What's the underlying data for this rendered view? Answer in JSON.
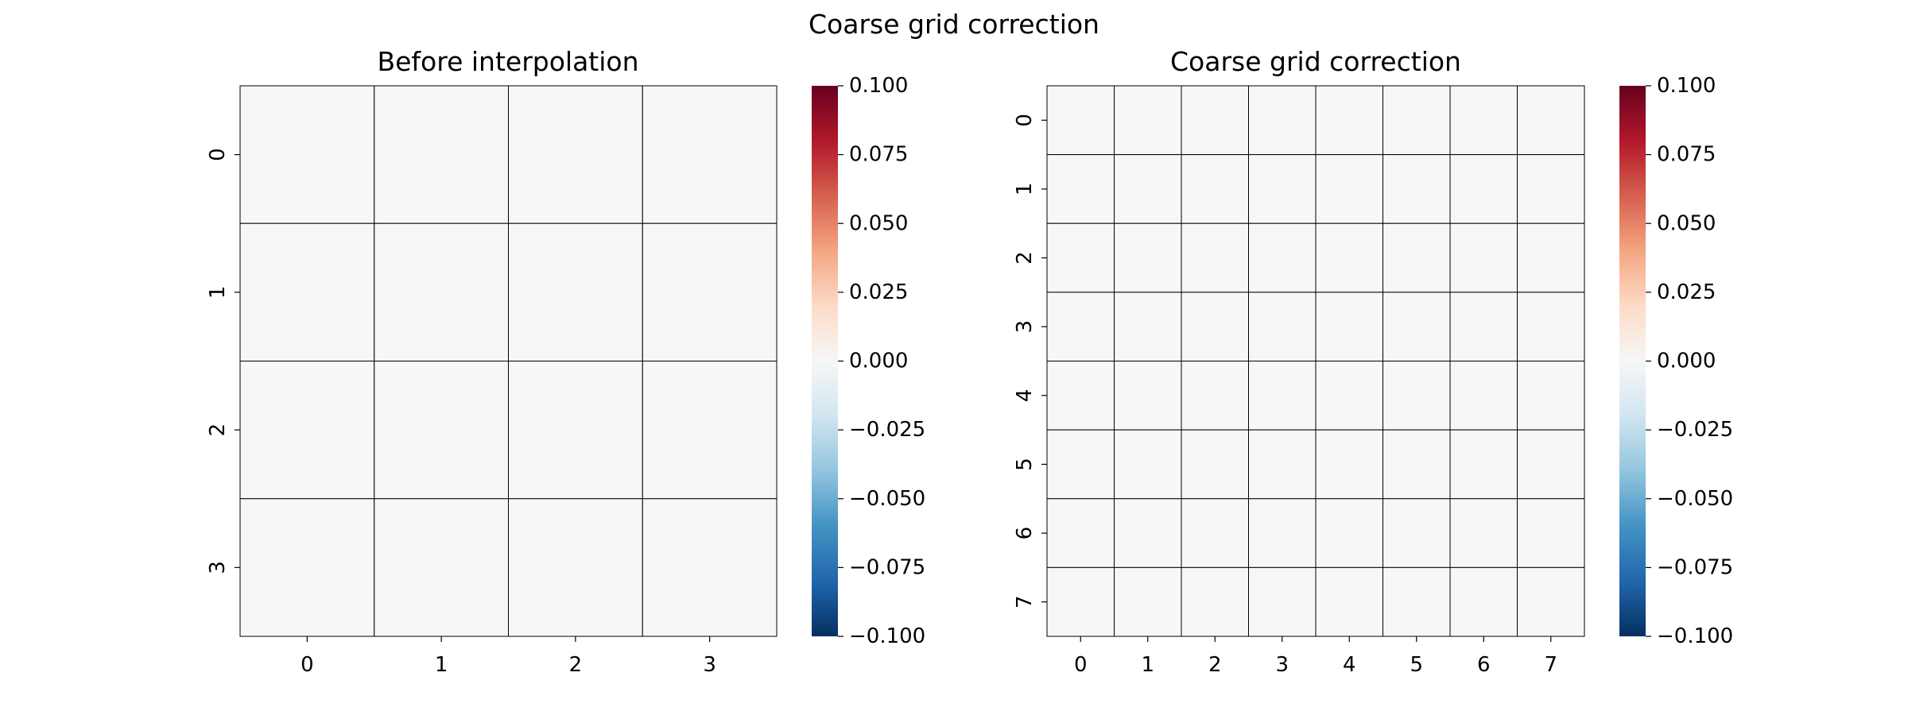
{
  "figure": {
    "suptitle": "Coarse grid correction"
  },
  "chart_data": [
    {
      "type": "heatmap",
      "title": "Before interpolation",
      "rows": 4,
      "cols": 4,
      "x_tick_labels": [
        "0",
        "1",
        "2",
        "3"
      ],
      "y_tick_labels": [
        "0",
        "1",
        "2",
        "3"
      ],
      "values": [
        [
          0,
          0,
          0,
          0
        ],
        [
          0,
          0,
          0,
          0
        ],
        [
          0,
          0,
          0,
          0
        ],
        [
          0,
          0,
          0,
          0
        ]
      ],
      "cell_color": "#f7f7f7",
      "grid_line_color": "#000000",
      "colorbar": {
        "range": [
          -0.1,
          0.1
        ],
        "tick_labels": [
          "0.100",
          "0.075",
          "0.050",
          "0.025",
          "0.000",
          "−0.025",
          "−0.050",
          "−0.075",
          "−0.100"
        ],
        "tick_values": [
          0.1,
          0.075,
          0.05,
          0.025,
          0.0,
          -0.025,
          -0.05,
          -0.075,
          -0.1
        ],
        "colormap": "RdBu_r",
        "colors": [
          "#67001f",
          "#b2182b",
          "#d6604d",
          "#f4a582",
          "#fddbc7",
          "#f7f7f7",
          "#d1e5f0",
          "#92c5de",
          "#4393c3",
          "#2166ac",
          "#053061"
        ]
      }
    },
    {
      "type": "heatmap",
      "title": "Coarse grid correction",
      "rows": 8,
      "cols": 8,
      "x_tick_labels": [
        "0",
        "1",
        "2",
        "3",
        "4",
        "5",
        "6",
        "7"
      ],
      "y_tick_labels": [
        "0",
        "1",
        "2",
        "3",
        "4",
        "5",
        "6",
        "7"
      ],
      "values": [
        [
          0,
          0,
          0,
          0,
          0,
          0,
          0,
          0
        ],
        [
          0,
          0,
          0,
          0,
          0,
          0,
          0,
          0
        ],
        [
          0,
          0,
          0,
          0,
          0,
          0,
          0,
          0
        ],
        [
          0,
          0,
          0,
          0,
          0,
          0,
          0,
          0
        ],
        [
          0,
          0,
          0,
          0,
          0,
          0,
          0,
          0
        ],
        [
          0,
          0,
          0,
          0,
          0,
          0,
          0,
          0
        ],
        [
          0,
          0,
          0,
          0,
          0,
          0,
          0,
          0
        ],
        [
          0,
          0,
          0,
          0,
          0,
          0,
          0,
          0
        ]
      ],
      "cell_color": "#f7f7f7",
      "grid_line_color": "#000000",
      "colorbar": {
        "range": [
          -0.1,
          0.1
        ],
        "tick_labels": [
          "0.100",
          "0.075",
          "0.050",
          "0.025",
          "0.000",
          "−0.025",
          "−0.050",
          "−0.075",
          "−0.100"
        ],
        "tick_values": [
          0.1,
          0.075,
          0.05,
          0.025,
          0.0,
          -0.025,
          -0.05,
          -0.075,
          -0.1
        ],
        "colormap": "RdBu_r",
        "colors": [
          "#67001f",
          "#b2182b",
          "#d6604d",
          "#f4a582",
          "#fddbc7",
          "#f7f7f7",
          "#d1e5f0",
          "#92c5de",
          "#4393c3",
          "#2166ac",
          "#053061"
        ]
      }
    }
  ]
}
